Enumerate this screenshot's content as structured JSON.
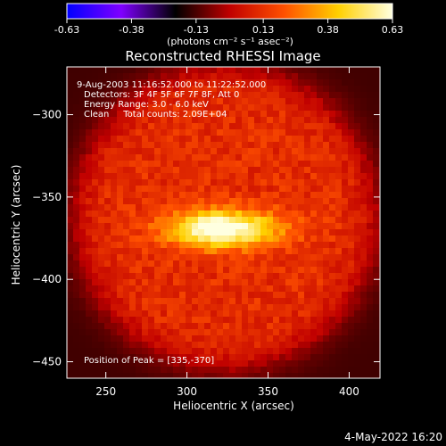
{
  "colorbar": {
    "tick_labels": [
      "-0.63",
      "-0.38",
      "-0.13",
      "0.13",
      "0.38",
      "0.63"
    ],
    "tick_values": [
      -0.63,
      -0.38,
      -0.13,
      0.13,
      0.38,
      0.63
    ],
    "range": [
      -0.63,
      0.63
    ],
    "unit_label": "(photons cm⁻² s⁻¹ asec⁻²)",
    "colors": [
      "#0000ff",
      "#7f00ff",
      "#000000",
      "#c00000",
      "#ff5000",
      "#ffd000",
      "#ffffe0"
    ]
  },
  "chart_data": {
    "type": "heatmap",
    "title": "Reconstructed RHESSI Image",
    "xlabel": "Heliocentric X (arcsec)",
    "ylabel": "Heliocentric Y (arcsec)",
    "xlim": [
      226,
      419
    ],
    "ylim": [
      -460,
      -271
    ],
    "xticks": [
      250,
      300,
      350,
      400
    ],
    "yticks": [
      -300,
      -350,
      -400,
      -450
    ],
    "xtick_labels": [
      "250",
      "300",
      "350",
      "400"
    ],
    "ytick_labels": [
      "−300",
      "−350",
      "−400",
      "−450"
    ],
    "annotations": [
      "9-Aug-2003 11:16:52.000 to 11:22:52.000",
      "Detectors: 3F 4F 5F 6F 7F 8F, Att 0",
      "Energy Range: 3.0 - 6.0 keV",
      "Clean     Total counts: 2.09E+04"
    ],
    "peak_label": "Position of Peak = [335,-370]",
    "peak": {
      "x": 335,
      "y": -370
    },
    "source": {
      "x": 322,
      "y": -369,
      "sx": 24,
      "sy": 8,
      "value": 0.63
    },
    "source2": {
      "x": 308,
      "y": -370,
      "sx": 14,
      "sy": 8,
      "value": 0.5
    },
    "disk": {
      "x": 322,
      "y": -362,
      "radius": 90,
      "level": 0.12
    },
    "background_level": -0.14
  },
  "footer": {
    "timestamp": "4-May-2022 16:20"
  }
}
